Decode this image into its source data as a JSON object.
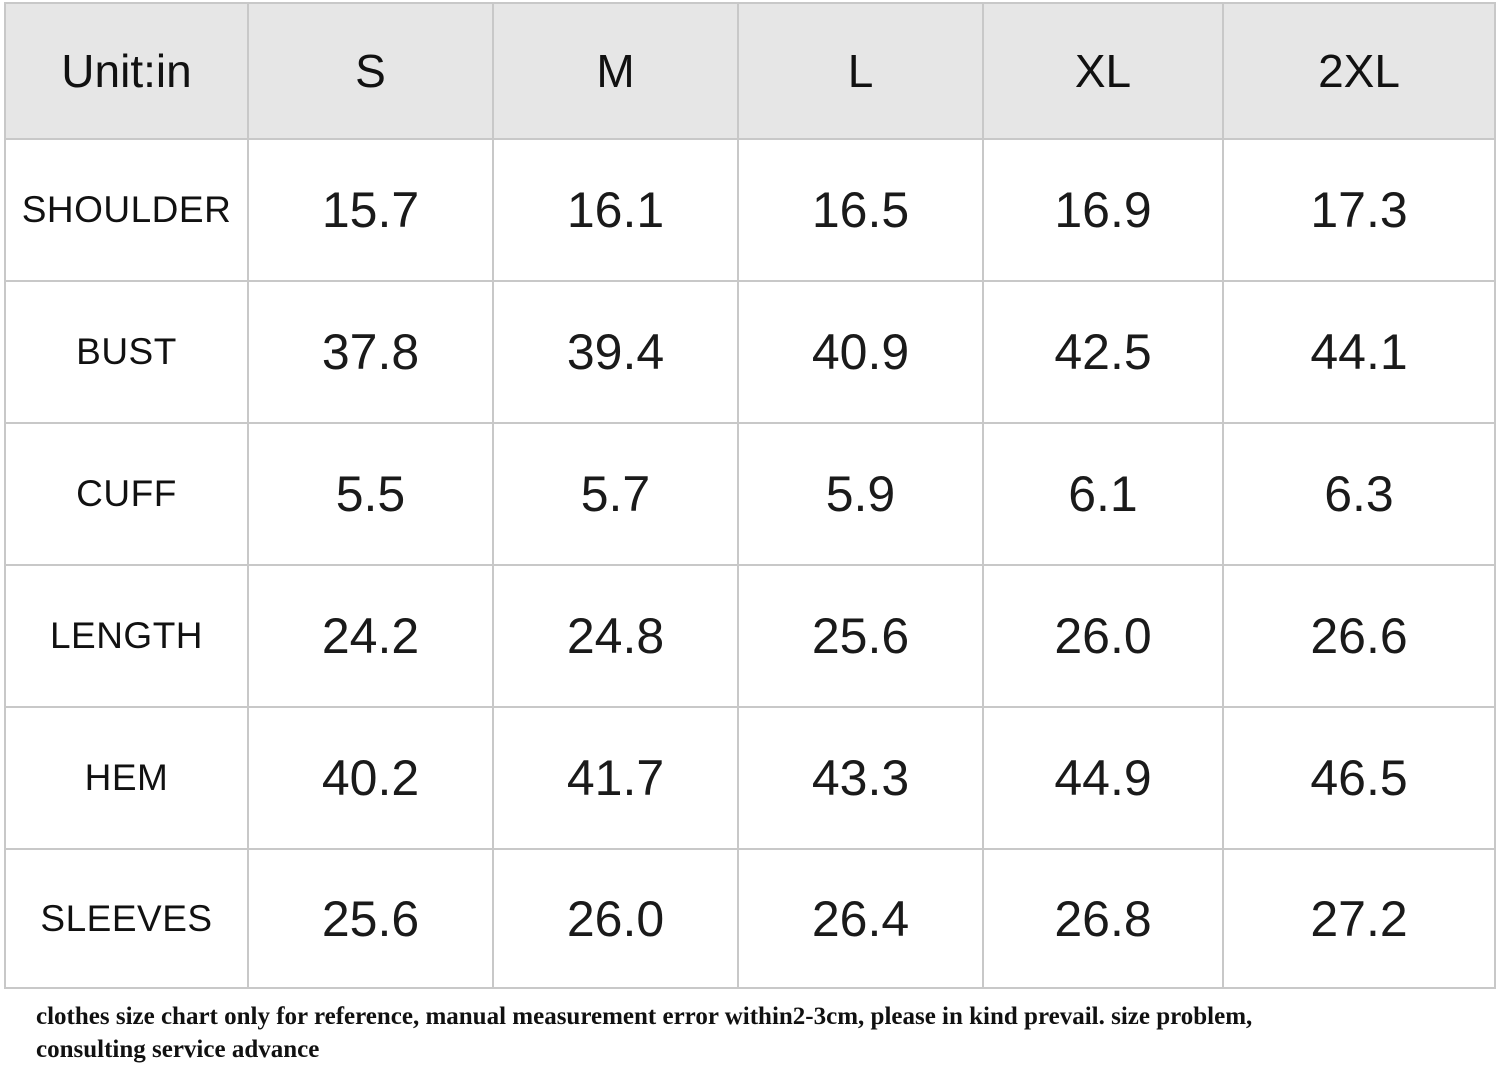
{
  "table": {
    "unit_label": "Unit:in",
    "sizes": [
      "S",
      "M",
      "L",
      "XL",
      "2XL"
    ],
    "rows": [
      {
        "label": "SHOULDER",
        "values": [
          "15.7",
          "16.1",
          "16.5",
          "16.9",
          "17.3"
        ]
      },
      {
        "label": "BUST",
        "values": [
          "37.8",
          "39.4",
          "40.9",
          "42.5",
          "44.1"
        ]
      },
      {
        "label": "CUFF",
        "values": [
          "5.5",
          "5.7",
          "5.9",
          "6.1",
          "6.3"
        ]
      },
      {
        "label": "LENGTH",
        "values": [
          "24.2",
          "24.8",
          "25.6",
          "26.0",
          "26.6"
        ]
      },
      {
        "label": "HEM",
        "values": [
          "40.2",
          "41.7",
          "43.3",
          "44.9",
          "46.5"
        ]
      },
      {
        "label": "SLEEVES",
        "values": [
          "25.6",
          "26.0",
          "26.4",
          "26.8",
          "27.2"
        ]
      }
    ]
  },
  "note": {
    "line1": "clothes size chart only for reference, manual measurement error within2-3cm, please in kind prevail. size problem,",
    "line2": "consulting service advance"
  }
}
